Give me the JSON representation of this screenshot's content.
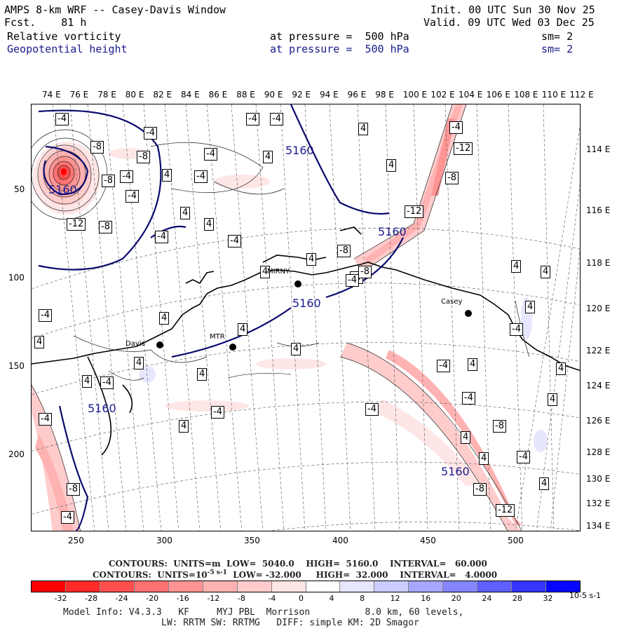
{
  "header": {
    "title": "AMPS 8-km WRF -- Casey-Davis Window",
    "fcst": "Fcst.    81 h",
    "init": "Init. 00 UTC Sun 30 Nov 25",
    "valid": "Valid. 09 UTC Wed 03 Dec 25",
    "field1": "Relative vorticity",
    "field1_level": "at pressure =  500 hPa",
    "field1_sm": "sm= 2",
    "field2": "Geopotential height",
    "field2_level": "at pressure =  500 hPa",
    "field2_sm": "sm= 2"
  },
  "top_lon_labels": [
    "74 E",
    "76 E",
    "78 E",
    "80 E",
    "82 E",
    "84 E",
    "86 E",
    "88 E",
    "90 E",
    "92 E",
    "94 E",
    "96 E",
    "98 E",
    "100 E",
    "102 E",
    "104 E",
    "106 E",
    "108 E",
    "110 E",
    "112 E"
  ],
  "right_lon_labels": [
    "114 E",
    "116 E",
    "118 E",
    "120 E",
    "122 E",
    "124 E",
    "126 E",
    "128 E",
    "130 E",
    "132 E",
    "134 E"
  ],
  "x_axis": [
    "250",
    "300",
    "350",
    "400",
    "450",
    "500"
  ],
  "y_axis": [
    "50",
    "100",
    "150",
    "200"
  ],
  "stations": [
    "Davis",
    "MTR",
    "Casey",
    "MIRNY"
  ],
  "contour_labels": {
    "height": [
      "5160",
      "5160",
      "5160",
      "5160",
      "5160",
      "5160"
    ],
    "vort_neg": [
      "-4",
      "-8",
      "-12"
    ],
    "vort_pos": [
      "4"
    ]
  },
  "contour_info": {
    "line1_label": "CONTOURS:  UNITS=m",
    "line1_low": "LOW=  5040.0",
    "line1_high": "HIGH=  5160.0",
    "line1_int": "INTERVAL=   60.000",
    "line2_label": "CONTOURS:  UNITS=10",
    "line2_units": "-5 s-1",
    "line2_low": "LOW= -32.000",
    "line2_high": "HIGH=  32.000",
    "line2_int": "INTERVAL=   4.0000"
  },
  "colorbar": {
    "labels": [
      "-32",
      "-28",
      "-24",
      "-20",
      "-16",
      "-12",
      "-8",
      "-4",
      "0",
      "4",
      "8",
      "12",
      "16",
      "20",
      "24",
      "28",
      "32"
    ],
    "unit": "10-5 s-1",
    "colors": [
      "#ff0000",
      "#ff2a2a",
      "#ff4f4f",
      "#ff7272",
      "#ff9494",
      "#ffb2b2",
      "#ffcccc",
      "#ffe6e6",
      "#ffffff",
      "#ffffff",
      "#e6e6ff",
      "#ccccff",
      "#a7a7ff",
      "#8585ff",
      "#5f5fff",
      "#3535ff",
      "#0505ff"
    ]
  },
  "model_info": {
    "line1": "Model Info: V4.3.3   KF     MYJ PBL  Morrison          8.0 km, 60 levels,",
    "line2": "LW: RRTM SW: RRTMG   DIFF: simple KM: 2D Smagor"
  }
}
